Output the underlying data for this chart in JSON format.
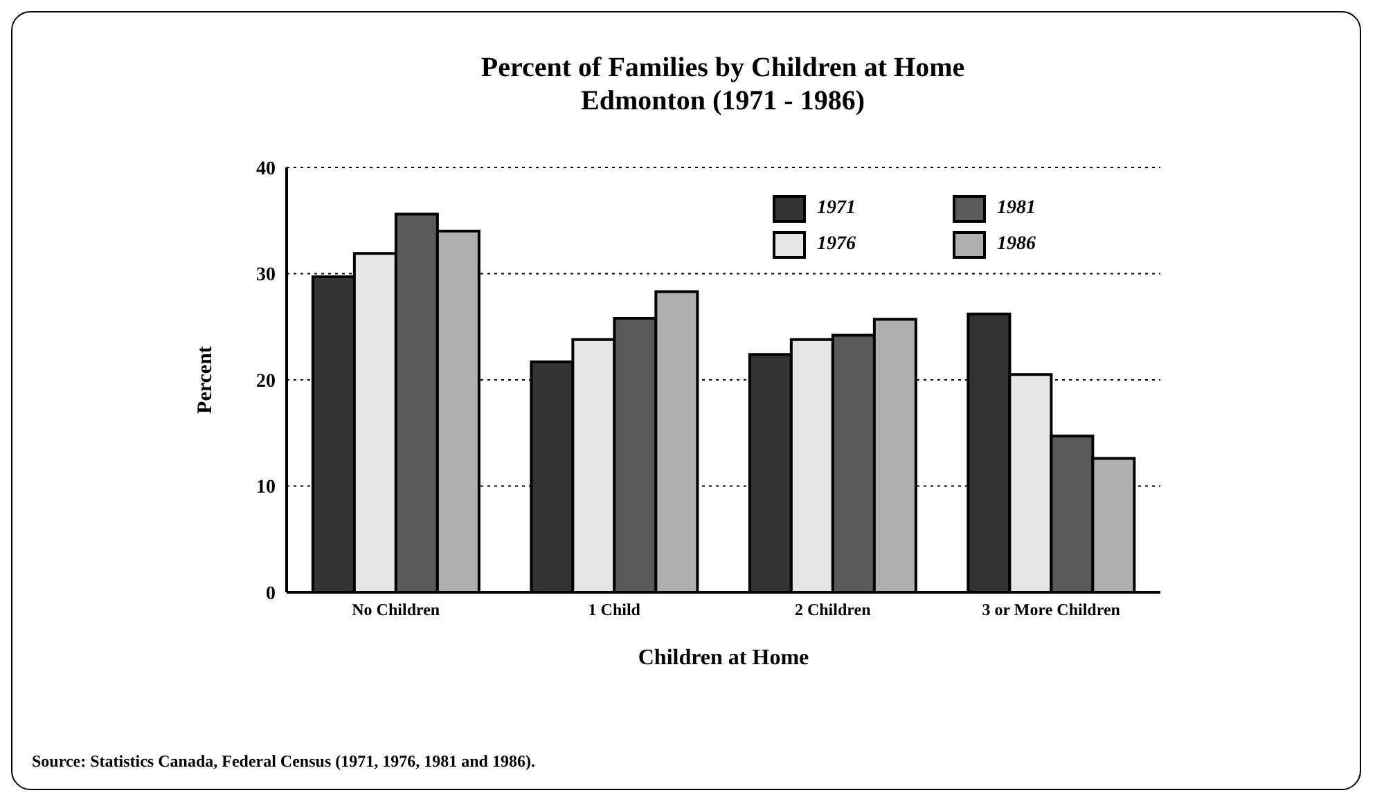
{
  "chart_data": {
    "type": "bar",
    "title": "Percent of Families by Children at Home",
    "subtitle": "Edmonton (1971 - 1986)",
    "xlabel": "Children at Home",
    "ylabel": "Percent",
    "categories": [
      "No Children",
      "1 Child",
      "2 Children",
      "3 or More Children"
    ],
    "series": [
      {
        "name": "1971",
        "color": "#333333",
        "values": [
          29.7,
          21.7,
          22.4,
          26.2
        ]
      },
      {
        "name": "1976",
        "color": "#e6e6e6",
        "values": [
          31.9,
          23.8,
          23.8,
          20.5
        ]
      },
      {
        "name": "1981",
        "color": "#5a5a5a",
        "values": [
          35.6,
          25.8,
          24.2,
          14.7
        ]
      },
      {
        "name": "1986",
        "color": "#b0b0b0",
        "values": [
          34.0,
          28.3,
          25.7,
          12.6
        ]
      }
    ],
    "ylim": [
      0,
      40
    ],
    "yticks": [
      0,
      10,
      20,
      30,
      40
    ],
    "grid": "y",
    "legend": "top right",
    "annotations": [
      "Source: Statistics Canada, Federal Census (1971, 1976, 1981 and 1986)."
    ]
  }
}
